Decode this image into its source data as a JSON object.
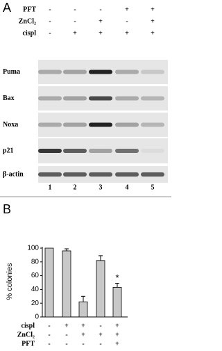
{
  "panel_a": {
    "label": "A",
    "treatments": [
      {
        "name": "PFT",
        "signs": [
          "-",
          "-",
          "-",
          "+",
          "+"
        ]
      },
      {
        "name": "ZnCl₂",
        "signs": [
          "-",
          "-",
          "+",
          "-",
          "+"
        ]
      },
      {
        "name": "cispl",
        "signs": [
          "-",
          "+",
          "+",
          "+",
          "+"
        ]
      }
    ],
    "rows": [
      "Puma",
      "Bax",
      "Noxa",
      "p21",
      "β-actin"
    ],
    "lanes": [
      "1",
      "2",
      "3",
      "4",
      "5"
    ]
  },
  "chart_data": {
    "type": "bar",
    "panel_label": "B",
    "y_label": "% colonies",
    "categories": [
      null,
      null,
      null,
      null,
      null
    ],
    "values": [
      100,
      96,
      22,
      82,
      43
    ],
    "errors": [
      0,
      3,
      8,
      7,
      6
    ],
    "color": "#c8c8c8",
    "ylim": [
      0,
      100
    ],
    "yticks": [
      0,
      20,
      40,
      60,
      80,
      100
    ],
    "annotation": "*",
    "treatments": [
      {
        "name": "cispl",
        "signs": [
          "-",
          "+",
          "+",
          "-",
          "+"
        ]
      },
      {
        "name": "ZnCl₂",
        "signs": [
          "-",
          "-",
          "+",
          "+",
          "+"
        ]
      },
      {
        "name": "PFT",
        "signs": [
          "-",
          "-",
          "-",
          "-",
          "+"
        ]
      }
    ]
  }
}
